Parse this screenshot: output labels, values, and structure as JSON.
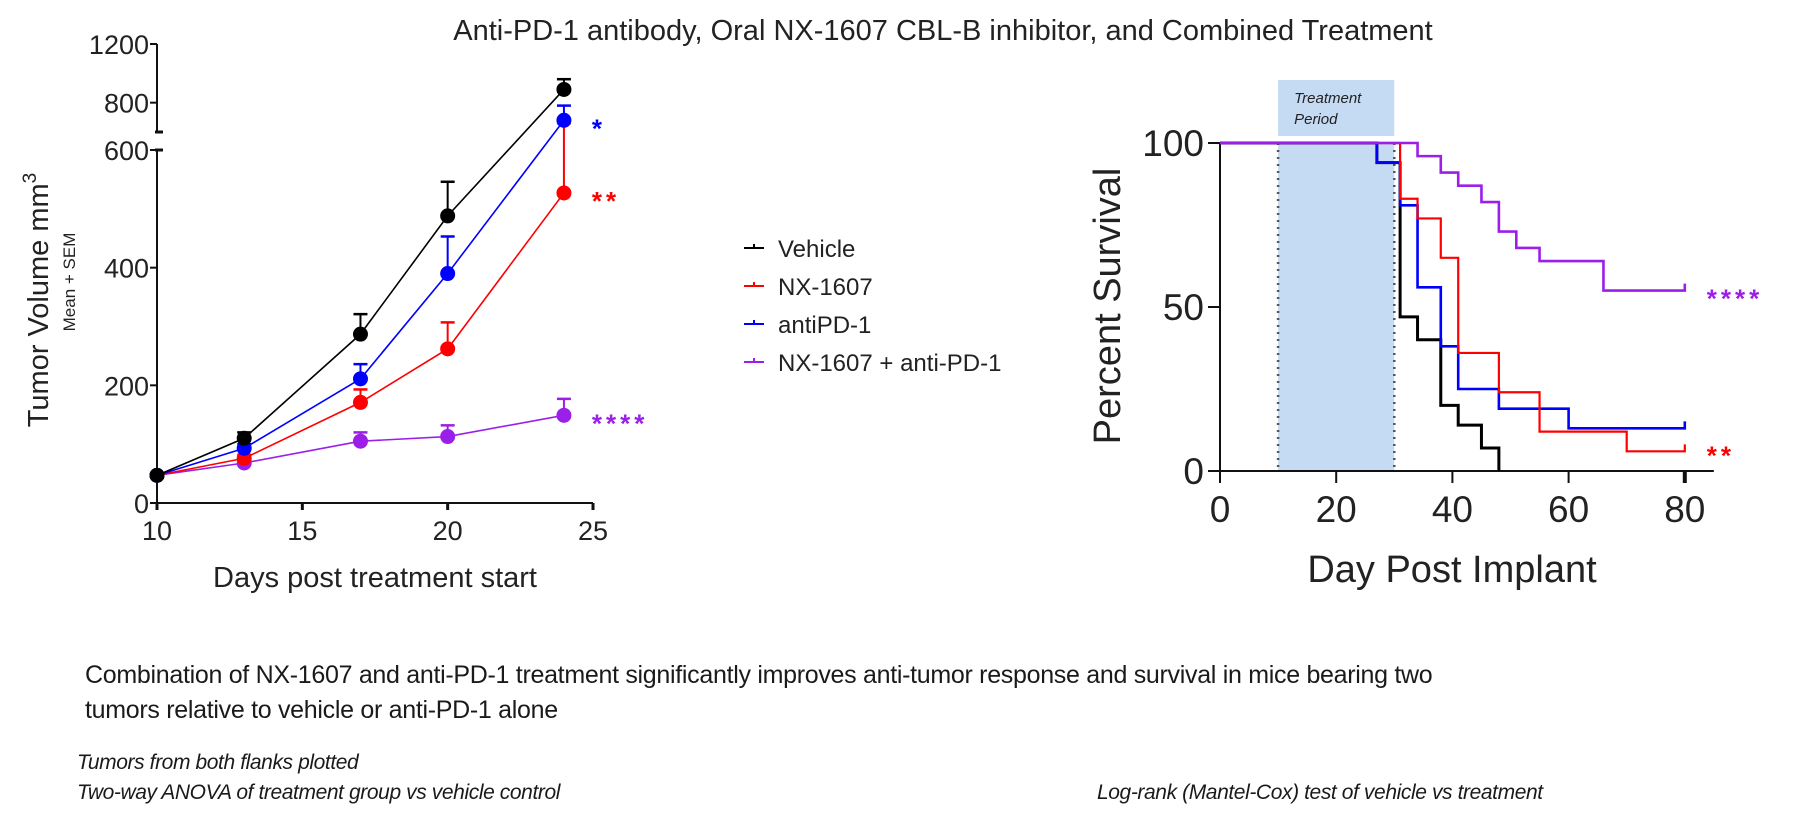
{
  "title": "Anti-PD-1 antibody, Oral NX-1607 CBL-B inhibitor, and Combined Treatment",
  "legend": [
    {
      "label": "Vehicle",
      "color": "#000000"
    },
    {
      "label": "NX-1607",
      "color": "#ff0000"
    },
    {
      "label": "antiPD-1",
      "color": "#0000ff"
    },
    {
      "label": "NX-1607 + anti-PD-1",
      "color": "#9b1fe8"
    }
  ],
  "captions": {
    "main_line1": "Combination of NX-1607 and anti-PD-1 treatment significantly improves anti-tumor response and survival in mice bearing two",
    "main_line2": "tumors relative to vehicle or anti-PD-1 alone",
    "left_note1": "Tumors from both flanks plotted",
    "left_note2": "Two-way ANOVA of treatment group vs vehicle control",
    "right_note": "Log-rank (Mantel-Cox) test of vehicle vs treatment"
  },
  "chart_data": [
    {
      "type": "line",
      "title": "",
      "xlabel": "Days post treatment start",
      "ylabel": "Tumor Volume mm",
      "ylabel_superscript": "3",
      "ylabel_sub": "Mean + SEM",
      "xlim": [
        10,
        25
      ],
      "xticks": [
        "10",
        "15",
        "20",
        "25"
      ],
      "ylim_lower": [
        0,
        600
      ],
      "ylim_upper": [
        600,
        1200
      ],
      "yticks_lower": [
        "0",
        "200",
        "400",
        "600"
      ],
      "yticks_upper": [
        "800",
        "1200"
      ],
      "axis_break": true,
      "x": [
        10,
        13,
        17,
        20,
        24
      ],
      "series": [
        {
          "name": "Vehicle",
          "color": "#000000",
          "values": [
            47,
            110,
            287,
            488,
            890
          ],
          "sem_upper": [
            47,
            120,
            321,
            546,
            960
          ],
          "significance": ""
        },
        {
          "name": "NX-1607",
          "color": "#ff0000",
          "values": [
            47,
            76,
            171,
            262,
            527
          ],
          "sem_upper": [
            47,
            82,
            193,
            307,
            660
          ],
          "significance": "**"
        },
        {
          "name": "antiPD-1",
          "color": "#0000ff",
          "values": [
            47,
            93,
            211,
            390,
            680
          ],
          "sem_upper": [
            47,
            100,
            236,
            453,
            780
          ],
          "significance": "*"
        },
        {
          "name": "NX-1607 + anti-PD-1",
          "color": "#9b1fe8",
          "values": [
            47,
            68,
            105,
            113,
            149
          ],
          "sem_upper": [
            47,
            72,
            120,
            132,
            177
          ],
          "significance": "****"
        }
      ]
    },
    {
      "type": "line",
      "subtype": "kaplan-meier",
      "xlabel": "Day Post Implant",
      "ylabel": "Percent Survival",
      "xlim": [
        0,
        85
      ],
      "ylim": [
        0,
        100
      ],
      "xticks": [
        "0",
        "20",
        "40",
        "60",
        "80"
      ],
      "yticks": [
        "0",
        "50",
        "100"
      ],
      "annotation": {
        "label_line1": "Treatment",
        "label_line2": "Period",
        "start_day": 10,
        "end_day": 30,
        "color": "#c5daf3"
      },
      "series": [
        {
          "name": "Vehicle",
          "color": "#000000",
          "steps": [
            [
              0,
              100
            ],
            [
              27,
              94
            ],
            [
              31,
              47
            ],
            [
              34,
              40
            ],
            [
              38,
              20
            ],
            [
              41,
              14
            ],
            [
              45,
              7
            ],
            [
              48,
              0
            ]
          ],
          "end_day": 48,
          "significance": ""
        },
        {
          "name": "NX-1607",
          "color": "#ff0000",
          "steps": [
            [
              0,
              100
            ],
            [
              31,
              83
            ],
            [
              34,
              77
            ],
            [
              38,
              65
            ],
            [
              41,
              36
            ],
            [
              48,
              24
            ],
            [
              55,
              12
            ],
            [
              70,
              6
            ]
          ],
          "end_day": 80,
          "significance": "**"
        },
        {
          "name": "antiPD-1",
          "color": "#0000ff",
          "steps": [
            [
              0,
              100
            ],
            [
              27,
              94
            ],
            [
              31,
              81
            ],
            [
              34,
              56
            ],
            [
              38,
              38
            ],
            [
              41,
              25
            ],
            [
              48,
              19
            ],
            [
              60,
              13
            ]
          ],
          "end_day": 80,
          "significance": ""
        },
        {
          "name": "NX-1607 + anti-PD-1",
          "color": "#9b1fe8",
          "steps": [
            [
              0,
              100
            ],
            [
              34,
              96
            ],
            [
              38,
              91
            ],
            [
              41,
              87
            ],
            [
              45,
              82
            ],
            [
              48,
              73
            ],
            [
              51,
              68
            ],
            [
              55,
              64
            ],
            [
              66,
              55
            ]
          ],
          "end_day": 80,
          "significance": "****"
        }
      ]
    }
  ]
}
